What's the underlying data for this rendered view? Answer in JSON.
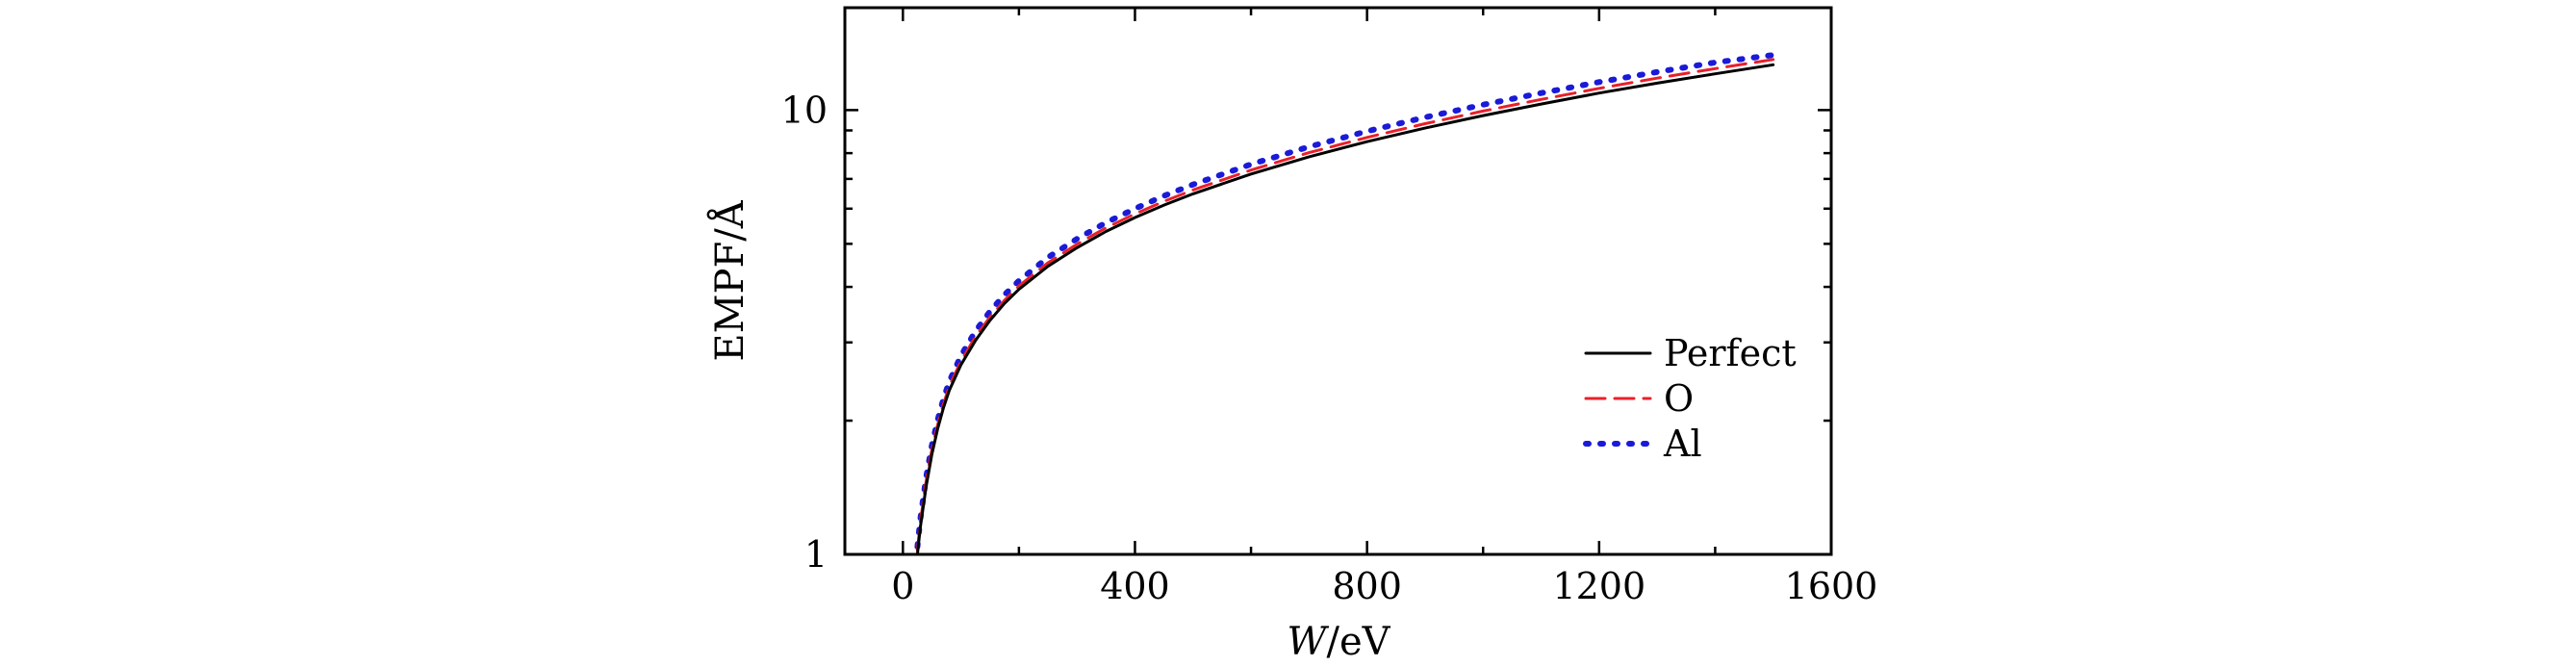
{
  "chart_data": {
    "type": "line",
    "title": "",
    "xlabel": {
      "var": "W",
      "unit": "/eV"
    },
    "ylabel": "EMPF/Å",
    "xlim": [
      -100,
      1600
    ],
    "ylim": [
      1,
      17
    ],
    "yscale": "log",
    "xticks": [
      0,
      400,
      800,
      1200,
      1600
    ],
    "yticks": [
      1,
      10
    ],
    "grid": false,
    "legend": "right, middle",
    "series": [
      {
        "name": "Perfect",
        "color": "#000000",
        "style": "solid",
        "x": [
          25,
          30,
          40,
          50,
          60,
          70,
          80,
          100,
          125,
          150,
          175,
          200,
          250,
          300,
          350,
          400,
          450,
          500,
          600,
          700,
          800,
          900,
          1000,
          1100,
          1200,
          1300,
          1400,
          1500
        ],
        "y": [
          1.0,
          1.15,
          1.42,
          1.68,
          1.92,
          2.14,
          2.34,
          2.67,
          3.03,
          3.36,
          3.67,
          3.95,
          4.45,
          4.9,
          5.33,
          5.73,
          6.11,
          6.48,
          7.18,
          7.85,
          8.49,
          9.11,
          9.72,
          10.32,
          10.92,
          11.5,
          12.07,
          12.65
        ]
      },
      {
        "name": "O",
        "color": "#e8202a",
        "style": "dashed",
        "x": [
          25,
          30,
          40,
          50,
          60,
          70,
          80,
          100,
          125,
          150,
          175,
          200,
          250,
          300,
          350,
          400,
          450,
          500,
          600,
          700,
          800,
          900,
          1000,
          1100,
          1200,
          1300,
          1400,
          1500
        ],
        "y": [
          1.02,
          1.18,
          1.46,
          1.72,
          1.96,
          2.18,
          2.39,
          2.72,
          3.09,
          3.42,
          3.73,
          4.02,
          4.53,
          4.99,
          5.43,
          5.84,
          6.23,
          6.61,
          7.33,
          8.02,
          8.68,
          9.32,
          9.95,
          10.57,
          11.19,
          11.8,
          12.4,
          13.0
        ]
      },
      {
        "name": "Al",
        "color": "#1a1ad8",
        "style": "dotted",
        "x": [
          25,
          30,
          40,
          50,
          60,
          70,
          80,
          100,
          125,
          150,
          175,
          200,
          250,
          300,
          350,
          400,
          450,
          500,
          600,
          700,
          800,
          900,
          1000,
          1100,
          1200,
          1300,
          1400,
          1500
        ],
        "y": [
          1.04,
          1.2,
          1.49,
          1.76,
          2.01,
          2.24,
          2.45,
          2.8,
          3.18,
          3.52,
          3.84,
          4.13,
          4.66,
          5.13,
          5.58,
          6.0,
          6.41,
          6.8,
          7.55,
          8.27,
          8.96,
          9.63,
          10.28,
          10.92,
          11.56,
          12.18,
          12.8,
          13.3
        ]
      }
    ]
  }
}
